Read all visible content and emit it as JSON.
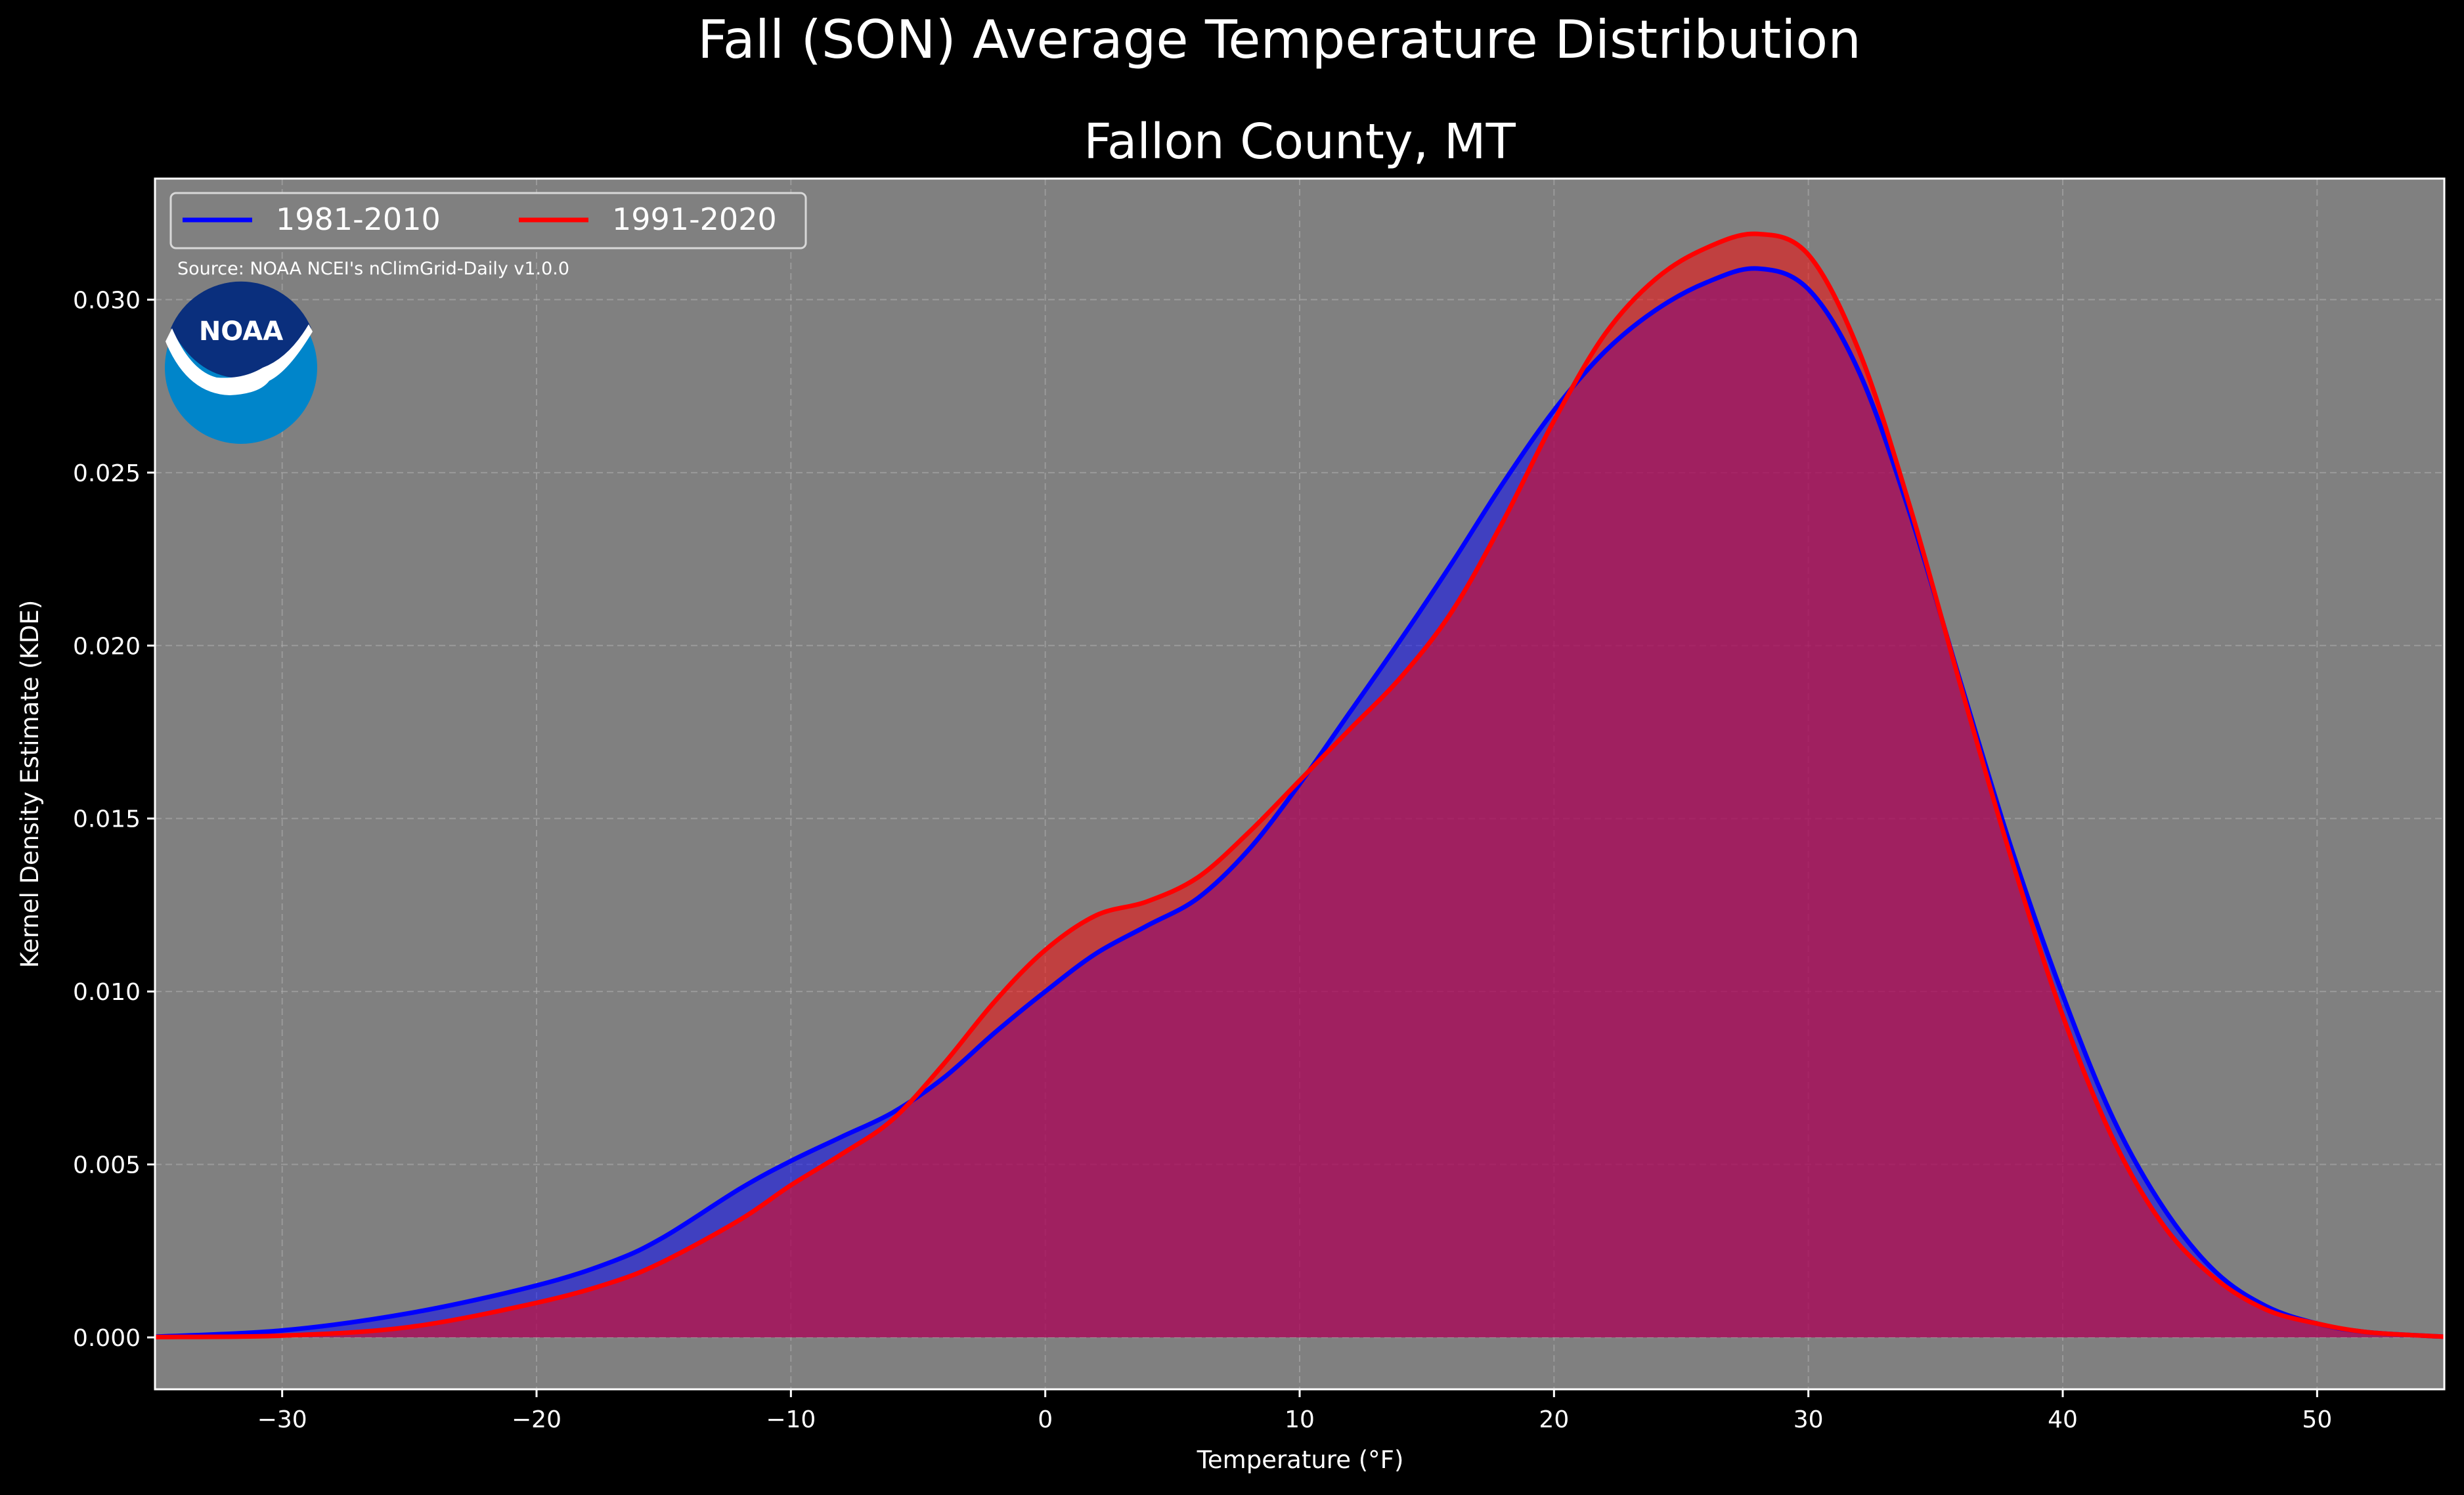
{
  "chart_data": {
    "type": "area",
    "title": "Fall (SON) Average Temperature Distribution",
    "subtitle": "Fallon County, MT",
    "xlabel": "Temperature (°F)",
    "ylabel": "Kernel Density Estimate (KDE)",
    "source": "Source: NOAA NCEI's nClimGrid-Daily v1.0.0",
    "logo_text": "NOAA",
    "xlim": [
      -35,
      55
    ],
    "ylim": [
      -0.0015,
      0.0335
    ],
    "xticks": [
      -30,
      -20,
      -10,
      0,
      10,
      20,
      30,
      40,
      50
    ],
    "yticks": [
      0.0,
      0.005,
      0.01,
      0.015,
      0.02,
      0.025,
      0.03
    ],
    "xtick_labels": [
      "−30",
      "−20",
      "−10",
      "0",
      "10",
      "20",
      "30",
      "40",
      "50"
    ],
    "ytick_labels": [
      "0.000",
      "0.005",
      "0.010",
      "0.015",
      "0.020",
      "0.025",
      "0.030"
    ],
    "grid": true,
    "legend_position": "top-left",
    "colors": {
      "figure_background": "#000000",
      "axes_background": "#808080",
      "series_1": "#0000ff",
      "series_2": "#ff0000",
      "grid": "#b0b0b0"
    },
    "series": [
      {
        "name": "1981-2010",
        "color": "#0000ff",
        "x": [
          -35,
          -30,
          -25,
          -20,
          -17,
          -15,
          -12,
          -10,
          -8,
          -6,
          -4,
          -2,
          0,
          2,
          4,
          6,
          8,
          10,
          12,
          14,
          16,
          18,
          20,
          22,
          24,
          26,
          28,
          30,
          32,
          34,
          36,
          38,
          40,
          42,
          44,
          46,
          48,
          50,
          52,
          55
        ],
        "y": [
          2e-05,
          0.0002,
          0.0007,
          0.0015,
          0.0022,
          0.0029,
          0.0043,
          0.0051,
          0.0058,
          0.0065,
          0.0075,
          0.0088,
          0.01,
          0.0111,
          0.0119,
          0.0127,
          0.0141,
          0.016,
          0.0181,
          0.0202,
          0.0224,
          0.0247,
          0.0268,
          0.0285,
          0.0297,
          0.0305,
          0.0309,
          0.0303,
          0.0279,
          0.0238,
          0.0189,
          0.0141,
          0.0099,
          0.0063,
          0.0037,
          0.0019,
          0.0009,
          0.0004,
          0.00015,
          2e-05
        ]
      },
      {
        "name": "1991-2020",
        "color": "#ff0000",
        "x": [
          -35,
          -30,
          -25,
          -20,
          -17,
          -15,
          -12,
          -10,
          -8,
          -6,
          -4,
          -2,
          0,
          2,
          4,
          6,
          8,
          10,
          12,
          14,
          16,
          18,
          20,
          22,
          24,
          26,
          28,
          30,
          32,
          34,
          36,
          38,
          40,
          42,
          44,
          46,
          48,
          50,
          52,
          55
        ],
        "y": [
          1e-05,
          5e-05,
          0.0003,
          0.001,
          0.0016,
          0.0022,
          0.0034,
          0.0044,
          0.0053,
          0.0063,
          0.0079,
          0.0097,
          0.0112,
          0.0122,
          0.0126,
          0.0133,
          0.0146,
          0.0161,
          0.0176,
          0.0191,
          0.021,
          0.0236,
          0.0265,
          0.029,
          0.0306,
          0.0315,
          0.0319,
          0.0313,
          0.0285,
          0.024,
          0.0188,
          0.0138,
          0.0093,
          0.0057,
          0.0032,
          0.0017,
          0.0008,
          0.0004,
          0.00015,
          2e-05
        ]
      }
    ]
  }
}
